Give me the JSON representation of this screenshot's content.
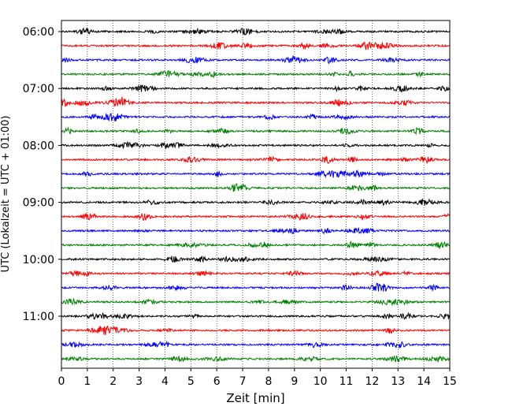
{
  "chart_data": {
    "type": "line",
    "title": "",
    "xlabel": "Zeit  [min]",
    "ylabel": "UTC (Lokalzeit = UTC + 01:00)",
    "xlim": [
      0,
      15
    ],
    "x_ticks": [
      "0",
      "1",
      "2",
      "3",
      "4",
      "5",
      "6",
      "7",
      "8",
      "9",
      "10",
      "11",
      "12",
      "13",
      "14",
      "15"
    ],
    "y_tick_labels": [
      "06:00",
      "07:00",
      "08:00",
      "09:00",
      "10:00",
      "11:00"
    ],
    "rows_per_hour": 4,
    "grid": "vertical dotted lines at each minute",
    "series_colors": [
      "#000000",
      "#ff0000",
      "#0000ff",
      "#008000"
    ],
    "traces": [
      {
        "start": "06:00",
        "color": "#000000"
      },
      {
        "start": "06:15",
        "color": "#ff0000"
      },
      {
        "start": "06:30",
        "color": "#0000ff"
      },
      {
        "start": "06:45",
        "color": "#008000"
      },
      {
        "start": "07:00",
        "color": "#000000"
      },
      {
        "start": "07:15",
        "color": "#ff0000"
      },
      {
        "start": "07:30",
        "color": "#0000ff"
      },
      {
        "start": "07:45",
        "color": "#008000"
      },
      {
        "start": "08:00",
        "color": "#000000"
      },
      {
        "start": "08:15",
        "color": "#ff0000"
      },
      {
        "start": "08:30",
        "color": "#0000ff"
      },
      {
        "start": "08:45",
        "color": "#008000"
      },
      {
        "start": "09:00",
        "color": "#000000"
      },
      {
        "start": "09:15",
        "color": "#ff0000"
      },
      {
        "start": "09:30",
        "color": "#0000ff"
      },
      {
        "start": "09:45",
        "color": "#008000"
      },
      {
        "start": "10:00",
        "color": "#000000"
      },
      {
        "start": "10:15",
        "color": "#ff0000"
      },
      {
        "start": "10:30",
        "color": "#0000ff"
      },
      {
        "start": "10:45",
        "color": "#008000"
      },
      {
        "start": "11:00",
        "color": "#000000"
      },
      {
        "start": "11:15",
        "color": "#ff0000"
      },
      {
        "start": "11:30",
        "color": "#0000ff"
      },
      {
        "start": "11:45",
        "color": "#008000"
      }
    ]
  }
}
